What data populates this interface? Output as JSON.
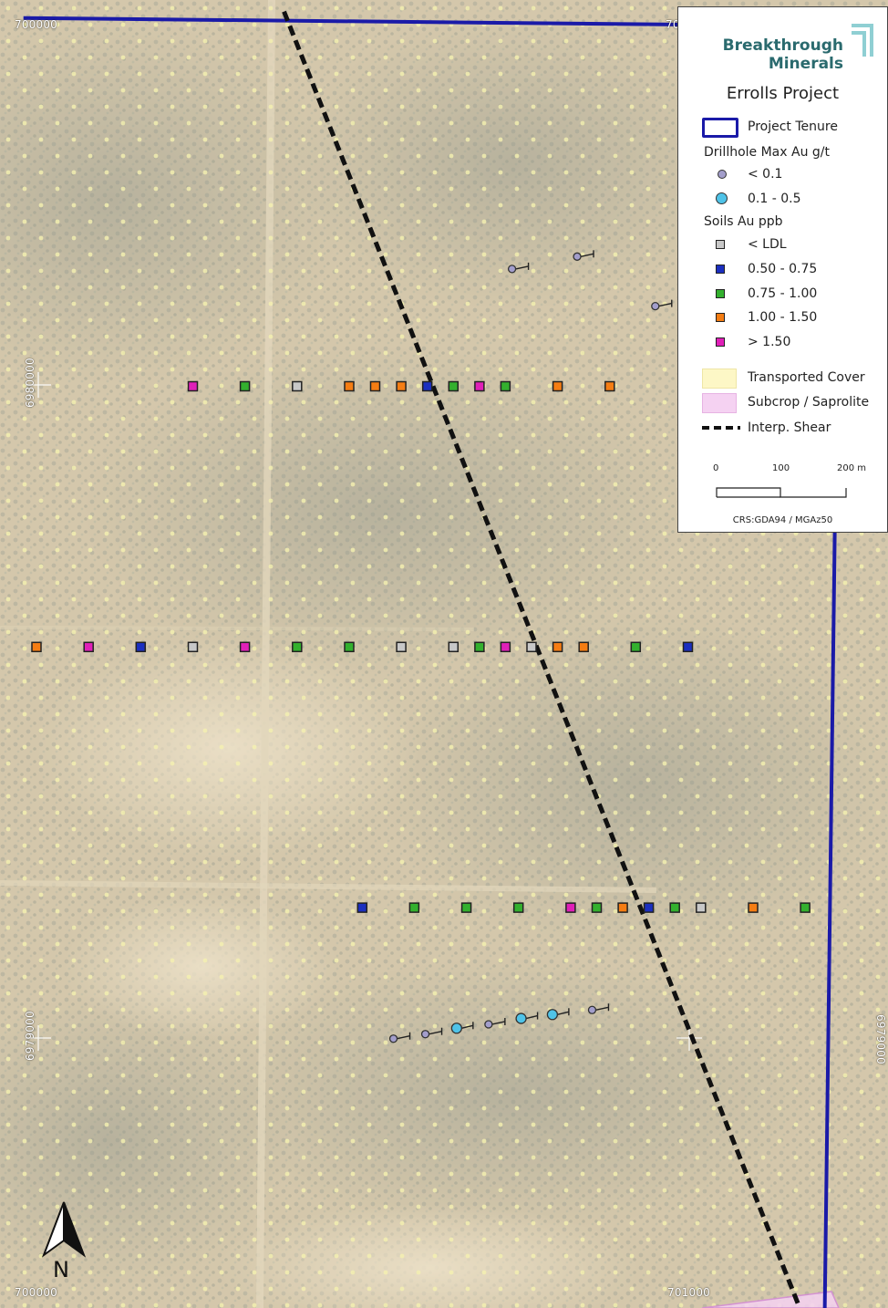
{
  "brand": {
    "line1": "Breakthrough",
    "line2": "Minerals"
  },
  "legend": {
    "title": "Errolls Project",
    "tenure": {
      "label": "Project Tenure",
      "color": "#1a1aa8"
    },
    "drillhole_heading": "Drillhole Max Au g/t",
    "drillhole_classes": [
      {
        "label": "< 0.1",
        "color": "#a39ecb"
      },
      {
        "label": "0.1 - 0.5",
        "color": "#4fc3e8"
      }
    ],
    "soils_heading": "Soils Au ppb",
    "soil_classes": [
      {
        "label": "< LDL",
        "color": "#c8c8c8"
      },
      {
        "label": "0.50 - 0.75",
        "color": "#1b2fbf"
      },
      {
        "label": "0.75 - 1.00",
        "color": "#33b02e"
      },
      {
        "label": "1.00 - 1.50",
        "color": "#f57d13"
      },
      {
        "label": "> 1.50",
        "color": "#e020b8"
      }
    ],
    "transported_cover": {
      "label": "Transported Cover",
      "color": "#fdf7c6"
    },
    "subcrop": {
      "label": "Subcrop / Saprolite",
      "color": "#f5d2f2"
    },
    "shear": {
      "label": "Interp. Shear"
    },
    "scale": {
      "labels": [
        "0",
        "100",
        "200 m"
      ]
    },
    "crs": "CRS:GDA94 / MGAz50"
  },
  "grid_labels": {
    "easting_top_left": "700000",
    "easting_top_right": "70",
    "easting_bottom_left": "700000",
    "easting_bottom_right": "701000",
    "northing_upper": "6980000",
    "northing_lower_left": "6979000",
    "northing_lower_right": "6979000"
  },
  "north_arrow": {
    "label": "N"
  },
  "soil_lines": [
    {
      "northing": 6980000,
      "samples": [
        {
          "easting": 700240,
          "class": "> 1.50"
        },
        {
          "easting": 700320,
          "class": "0.75 - 1.00"
        },
        {
          "easting": 700400,
          "class": "< LDL"
        },
        {
          "easting": 700480,
          "class": "1.00 - 1.50"
        },
        {
          "easting": 700520,
          "class": "1.00 - 1.50"
        },
        {
          "easting": 700560,
          "class": "1.00 - 1.50"
        },
        {
          "easting": 700600,
          "class": "0.50 - 0.75"
        },
        {
          "easting": 700640,
          "class": "0.75 - 1.00"
        },
        {
          "easting": 700680,
          "class": "> 1.50"
        },
        {
          "easting": 700720,
          "class": "0.75 - 1.00"
        },
        {
          "easting": 700800,
          "class": "1.00 - 1.50"
        },
        {
          "easting": 700880,
          "class": "1.00 - 1.50"
        }
      ]
    },
    {
      "northing": 6979600,
      "samples": [
        {
          "easting": 700000,
          "class": "1.00 - 1.50"
        },
        {
          "easting": 700080,
          "class": "> 1.50"
        },
        {
          "easting": 700160,
          "class": "0.50 - 0.75"
        },
        {
          "easting": 700240,
          "class": "< LDL"
        },
        {
          "easting": 700320,
          "class": "> 1.50"
        },
        {
          "easting": 700400,
          "class": "0.75 - 1.00"
        },
        {
          "easting": 700480,
          "class": "0.75 - 1.00"
        },
        {
          "easting": 700560,
          "class": "< LDL"
        },
        {
          "easting": 700640,
          "class": "< LDL"
        },
        {
          "easting": 700680,
          "class": "0.75 - 1.00"
        },
        {
          "easting": 700720,
          "class": "> 1.50"
        },
        {
          "easting": 700760,
          "class": "< LDL"
        },
        {
          "easting": 700800,
          "class": "1.00 - 1.50"
        },
        {
          "easting": 700840,
          "class": "1.00 - 1.50"
        },
        {
          "easting": 700920,
          "class": "0.75 - 1.00"
        },
        {
          "easting": 701000,
          "class": "0.50 - 0.75"
        }
      ]
    },
    {
      "northing": 6979200,
      "samples": [
        {
          "easting": 700500,
          "class": "0.50 - 0.75"
        },
        {
          "easting": 700580,
          "class": "0.75 - 1.00"
        },
        {
          "easting": 700660,
          "class": "0.75 - 1.00"
        },
        {
          "easting": 700740,
          "class": "0.75 - 1.00"
        },
        {
          "easting": 700820,
          "class": "> 1.50"
        },
        {
          "easting": 700860,
          "class": "0.75 - 1.00"
        },
        {
          "easting": 700900,
          "class": "1.00 - 1.50"
        },
        {
          "easting": 700940,
          "class": "0.50 - 0.75"
        },
        {
          "easting": 700980,
          "class": "0.75 - 1.00"
        },
        {
          "easting": 701020,
          "class": "< LDL"
        },
        {
          "easting": 701100,
          "class": "1.00 - 1.50"
        },
        {
          "easting": 701180,
          "class": "0.75 - 1.00"
        }
      ]
    }
  ],
  "drillholes": [
    {
      "easting": 700730,
      "northing": 6980180,
      "class": "< 0.1"
    },
    {
      "easting": 700830,
      "northing": 6980199,
      "class": "< 0.1"
    },
    {
      "easting": 700950,
      "northing": 6980123,
      "class": "< 0.1"
    },
    {
      "easting": 700548,
      "northing": 6978999,
      "class": "< 0.1"
    },
    {
      "easting": 700597,
      "northing": 6979006,
      "class": "< 0.1"
    },
    {
      "easting": 700645,
      "northing": 6979015,
      "class": "0.1 - 0.5"
    },
    {
      "easting": 700694,
      "northing": 6979021,
      "class": "< 0.1"
    },
    {
      "easting": 700744,
      "northing": 6979030,
      "class": "0.1 - 0.5"
    },
    {
      "easting": 700792,
      "northing": 6979036,
      "class": "0.1 - 0.5"
    },
    {
      "easting": 700853,
      "northing": 6979043,
      "class": "< 0.1"
    }
  ],
  "shear_line": [
    {
      "easting": 700380,
      "northing": 6980575
    },
    {
      "easting": 701170,
      "northing": 6978590
    }
  ],
  "tenure_boundary": [
    {
      "easting": 699980,
      "northing": 6980565
    },
    {
      "easting": 701000,
      "northing": 6980555
    },
    {
      "easting": 701100,
      "northing": 6980554
    },
    {
      "easting": 701235,
      "northing": 6980554
    },
    {
      "easting": 701225,
      "northing": 6979740
    },
    {
      "easting": 701210,
      "northing": 6978570
    }
  ]
}
